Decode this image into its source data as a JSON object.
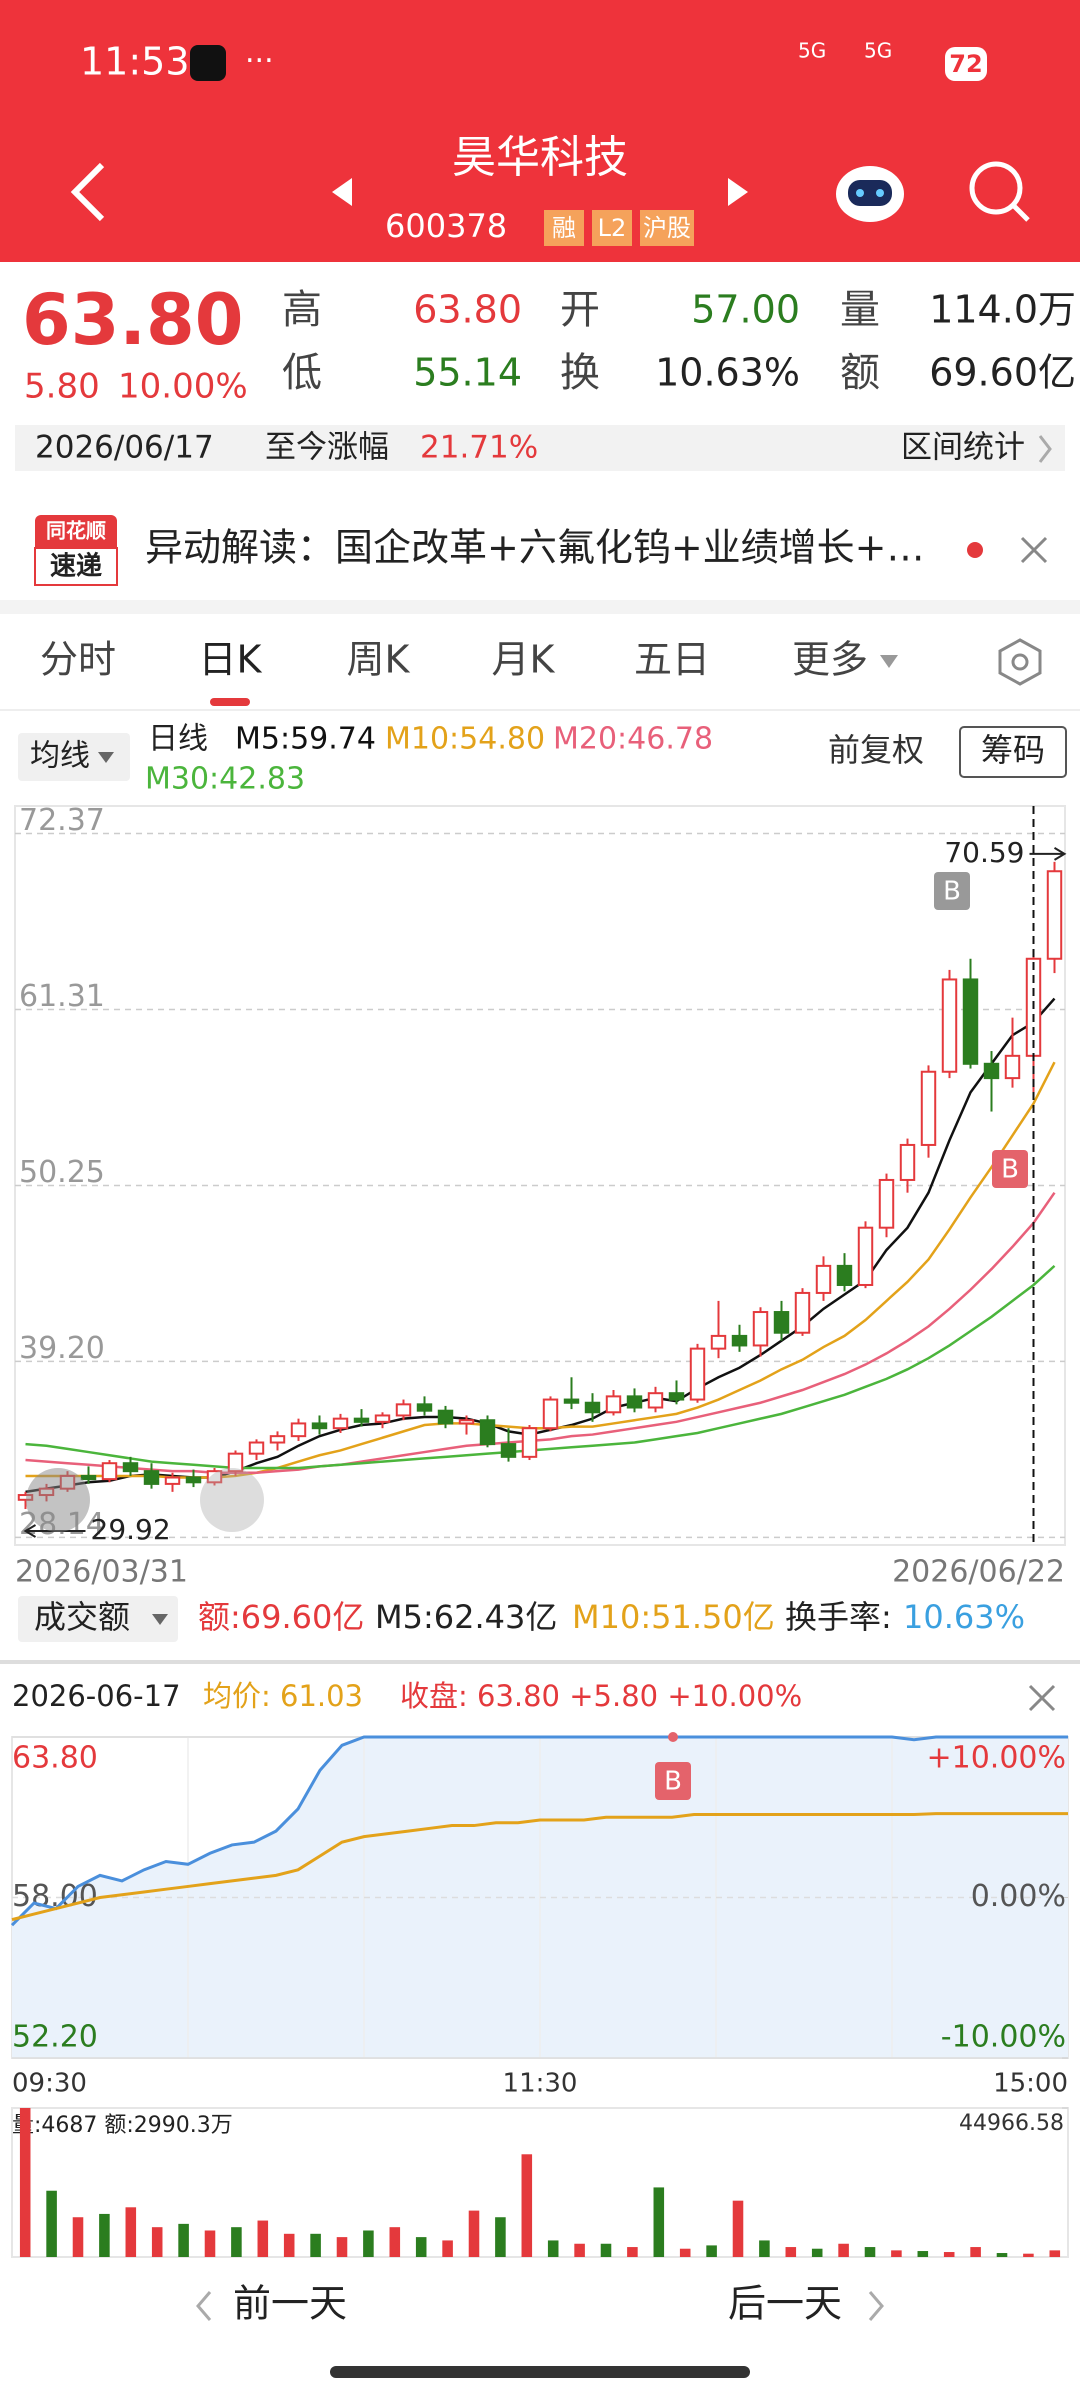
{
  "status_bar": {
    "time": "11:53",
    "signals": [
      "5G",
      "5G"
    ],
    "battery": "72"
  },
  "header": {
    "title": "昊华科技",
    "code": "600378",
    "badges": [
      "融",
      "L2",
      "沪股"
    ]
  },
  "quote": {
    "price": "63.80",
    "change": "5.80",
    "pct": "10.00%",
    "fields": [
      {
        "label": "高",
        "value": "63.80"
      },
      {
        "label": "低",
        "value": "55.14"
      },
      {
        "label": "开",
        "value": "57.00"
      },
      {
        "label": "换",
        "value": "10.63%"
      },
      {
        "label": "量",
        "value": "114.0万"
      },
      {
        "label": "额",
        "value": "69.60亿"
      }
    ]
  },
  "range": {
    "date": "2026/06/17",
    "label": "至今涨幅",
    "value": "21.71%",
    "stats": "区间统计"
  },
  "news": {
    "logo_top": "同花顺",
    "logo_bottom": "速递",
    "text": "异动解读：国企改革+六氟化钨+业绩增长+…"
  },
  "tabs": [
    "分时",
    "日K",
    "周K",
    "月K",
    "五日",
    "更多"
  ],
  "indicators": {
    "ma_menu": "均线",
    "period": "日线",
    "adjust": "前复权",
    "chips": "筹码"
  },
  "turnover_bar": {
    "menu": "成交额",
    "amount": "额:69.60亿",
    "m5": "M5:62.43亿",
    "m10": "M10:51.50亿",
    "rate_label": "换手率:",
    "rate": "10.63%"
  },
  "chart_data": [
    {
      "type": "candlestick",
      "categories": [
        "2026/03/31",
        null,
        null,
        null,
        null,
        null,
        null,
        null,
        null,
        null,
        null,
        null,
        null,
        null,
        null,
        null,
        null,
        null,
        null,
        null,
        null,
        null,
        null,
        null,
        null,
        null,
        null,
        null,
        null,
        null,
        null,
        null,
        null,
        null,
        null,
        null,
        null,
        null,
        null,
        null,
        null,
        null,
        null,
        null,
        null,
        null,
        null,
        null,
        null,
        "2026/06/22"
      ],
      "open": [
        30.5,
        30.8,
        31.2,
        32.0,
        31.8,
        32.8,
        32.3,
        31.5,
        31.9,
        31.6,
        32.3,
        33.4,
        34.1,
        34.5,
        35.3,
        35.0,
        35.6,
        35.4,
        35.8,
        36.5,
        36.1,
        35.3,
        35.5,
        34.0,
        33.2,
        35.0,
        36.8,
        36.6,
        36.0,
        37.0,
        36.3,
        37.2,
        36.8,
        40.0,
        40.8,
        40.2,
        42.3,
        41.0,
        43.5,
        45.2,
        44.0,
        47.6,
        50.6,
        52.8,
        57.4,
        63.2,
        57.9,
        57.0,
        58.4,
        64.5
      ],
      "high": [
        31.0,
        31.5,
        32.3,
        32.6,
        33.0,
        33.2,
        32.8,
        32.2,
        32.4,
        32.5,
        33.6,
        34.3,
        34.8,
        35.6,
        35.8,
        35.9,
        36.2,
        36.0,
        36.8,
        37.0,
        36.4,
        35.8,
        35.8,
        35.0,
        35.2,
        37.0,
        38.2,
        37.2,
        37.4,
        37.5,
        37.6,
        38.0,
        40.3,
        43.0,
        41.5,
        42.6,
        43.0,
        43.8,
        45.8,
        46.0,
        48.0,
        51.0,
        53.2,
        57.8,
        63.8,
        64.5,
        58.7,
        60.8,
        64.9,
        70.59
      ],
      "low": [
        29.92,
        30.4,
        31.0,
        31.5,
        31.6,
        32.0,
        31.2,
        31.0,
        31.3,
        31.4,
        32.0,
        33.0,
        33.6,
        34.2,
        34.6,
        34.7,
        35.1,
        35.0,
        35.5,
        35.8,
        35.0,
        34.6,
        33.8,
        32.9,
        33.0,
        34.8,
        36.2,
        35.4,
        35.8,
        36.0,
        36.0,
        36.5,
        36.6,
        39.4,
        39.8,
        39.5,
        40.5,
        40.8,
        43.0,
        43.6,
        43.8,
        47.0,
        49.8,
        52.0,
        57.0,
        57.6,
        54.9,
        56.4,
        56.0,
        63.6
      ],
      "close": [
        30.8,
        31.2,
        32.0,
        31.8,
        32.8,
        32.3,
        31.5,
        31.9,
        31.6,
        32.3,
        33.4,
        34.1,
        34.5,
        35.3,
        35.0,
        35.6,
        35.4,
        35.8,
        36.5,
        36.1,
        35.3,
        35.5,
        34.0,
        33.2,
        35.0,
        36.8,
        36.6,
        36.0,
        37.0,
        36.3,
        37.2,
        36.8,
        40.0,
        40.8,
        40.2,
        42.3,
        41.0,
        43.5,
        45.2,
        44.0,
        47.6,
        50.6,
        52.8,
        57.4,
        63.2,
        57.9,
        57.0,
        58.4,
        64.5,
        70.0
      ],
      "up_color": "#e4393c",
      "down_color": "#2b7d1f",
      "series": [
        {
          "name": "M5:59.74",
          "color": "#111111",
          "values": [
            31.0,
            31.2,
            31.4,
            31.6,
            31.7,
            32.0,
            32.1,
            32.0,
            31.9,
            31.9,
            32.3,
            32.8,
            33.2,
            33.9,
            34.5,
            34.9,
            35.2,
            35.3,
            35.6,
            35.7,
            35.7,
            35.6,
            35.3,
            34.8,
            34.6,
            34.9,
            35.2,
            35.6,
            36.3,
            36.6,
            36.9,
            36.7,
            37.5,
            38.2,
            38.8,
            39.6,
            40.5,
            41.4,
            42.5,
            43.4,
            44.3,
            46.2,
            47.6,
            49.8,
            53.1,
            56.1,
            57.9,
            59.7,
            60.5,
            62.0
          ]
        },
        {
          "name": "M10:54.80",
          "color": "#e3a21a",
          "values": [
            32.0,
            32.0,
            32.0,
            32.0,
            32.0,
            32.0,
            32.0,
            31.9,
            31.9,
            31.9,
            32.0,
            32.2,
            32.5,
            32.9,
            33.3,
            33.6,
            34.0,
            34.4,
            34.8,
            35.2,
            35.3,
            35.3,
            35.2,
            35.1,
            35.0,
            35.0,
            35.1,
            35.1,
            35.3,
            35.5,
            35.7,
            35.9,
            36.3,
            36.8,
            37.4,
            38.0,
            38.7,
            39.3,
            40.1,
            40.8,
            41.8,
            43.0,
            44.2,
            45.6,
            47.5,
            49.5,
            51.4,
            53.4,
            55.4,
            58.0
          ]
        },
        {
          "name": "M20:46.78",
          "color": "#e8607a",
          "values": [
            33.0,
            32.9,
            32.8,
            32.7,
            32.6,
            32.5,
            32.4,
            32.3,
            32.3,
            32.2,
            32.2,
            32.2,
            32.3,
            32.4,
            32.6,
            32.7,
            32.9,
            33.1,
            33.3,
            33.5,
            33.7,
            33.9,
            34.0,
            34.1,
            34.2,
            34.3,
            34.5,
            34.6,
            34.8,
            35.0,
            35.2,
            35.4,
            35.7,
            36.0,
            36.3,
            36.6,
            37.0,
            37.4,
            37.9,
            38.4,
            39.0,
            39.7,
            40.5,
            41.4,
            42.5,
            43.7,
            45.0,
            46.4,
            47.9,
            49.8
          ]
        },
        {
          "name": "M30:42.83",
          "color": "#4bb53c",
          "values": [
            34.0,
            33.9,
            33.7,
            33.5,
            33.3,
            33.1,
            32.9,
            32.8,
            32.7,
            32.6,
            32.5,
            32.5,
            32.5,
            32.5,
            32.6,
            32.7,
            32.8,
            32.9,
            33.0,
            33.1,
            33.2,
            33.3,
            33.4,
            33.5,
            33.6,
            33.7,
            33.8,
            33.9,
            34.0,
            34.1,
            34.3,
            34.5,
            34.7,
            35.0,
            35.3,
            35.6,
            35.9,
            36.3,
            36.7,
            37.1,
            37.6,
            38.1,
            38.7,
            39.4,
            40.2,
            41.1,
            42.0,
            43.0,
            44.0,
            45.2
          ]
        }
      ],
      "ylim": [
        27.66,
        74.1
      ],
      "yticks": [
        {
          "value": 28.14,
          "label": "28.14"
        },
        {
          "value": 39.2,
          "label": "39.20"
        },
        50.25,
        61.31,
        72.37
      ],
      "annotations": [
        "B",
        "B"
      ]
    },
    {
      "type": "line",
      "title": "2026-06-17",
      "categories": [
        "09:30",
        null,
        null,
        null,
        null,
        null,
        null,
        null,
        null,
        null,
        null,
        null,
        null,
        null,
        null,
        null,
        null,
        null,
        null,
        null,
        null,
        null,
        null,
        null,
        "11:30",
        null,
        null,
        null,
        null,
        null,
        null,
        null,
        null,
        null,
        null,
        null,
        null,
        null,
        null,
        null,
        null,
        null,
        null,
        null,
        null,
        null,
        null,
        null,
        "15:00"
      ],
      "series": [
        {
          "name": "收盘: 63.80 +5.80 +10.00%",
          "color": "#4a8fdc",
          "values": [
            57.0,
            57.8,
            57.6,
            58.4,
            58.8,
            58.6,
            59.0,
            59.3,
            59.2,
            59.6,
            59.9,
            60.0,
            60.4,
            61.2,
            62.6,
            63.5,
            63.8,
            63.8,
            63.8,
            63.8,
            63.8,
            63.8,
            63.8,
            63.8,
            63.8,
            63.8,
            63.8,
            63.8,
            63.8,
            63.8,
            63.8,
            63.8,
            63.8,
            63.8,
            63.8,
            63.8,
            63.8,
            63.8,
            63.8,
            63.8,
            63.8,
            63.7,
            63.8,
            63.8,
            63.8,
            63.8,
            63.8,
            63.8,
            63.8
          ]
        },
        {
          "name": "均价: 61.03",
          "color": "#e3a21a",
          "values": [
            57.2,
            57.4,
            57.6,
            57.8,
            58.0,
            58.1,
            58.2,
            58.3,
            58.4,
            58.5,
            58.6,
            58.7,
            58.8,
            59.0,
            59.5,
            60.0,
            60.2,
            60.3,
            60.4,
            60.5,
            60.6,
            60.6,
            60.7,
            60.7,
            60.8,
            60.8,
            60.8,
            60.9,
            60.9,
            60.9,
            60.9,
            61.0,
            61.0,
            61.0,
            61.0,
            61.0,
            61.0,
            61.0,
            61.0,
            61.0,
            61.0,
            61.0,
            61.03,
            61.03,
            61.03,
            61.03,
            61.03,
            61.03,
            61.03
          ]
        }
      ],
      "ylim": [
        52.2,
        63.8
      ],
      "yticks": [
        {
          "value": 52.2,
          "label": "52.20"
        },
        {
          "value": 58,
          "label": "58.00"
        },
        {
          "value": 63.8,
          "label": "63.80"
        }
      ],
      "y2lim": [
        -10,
        10
      ],
      "y2ticks": [
        {
          "value": -10,
          "label": "-10.00%"
        },
        {
          "value": 0,
          "label": "0.00%"
        },
        {
          "value": 10,
          "label": "+10.00%"
        }
      ],
      "grid": true,
      "annotations": [
        "B"
      ]
    },
    {
      "type": "bar",
      "title": "量:4687 额:2990.3万",
      "series": [
        {
          "color": "#e4393c",
          "values": [
            44966.58,
            null,
            12000,
            null,
            15000,
            9000,
            null,
            8000,
            null,
            11000,
            7000,
            null,
            6000,
            null,
            9000,
            null,
            5000,
            14000,
            null,
            31000,
            null,
            4000,
            null,
            3000,
            null,
            2500,
            null,
            17000,
            null,
            3000,
            null,
            4000,
            null,
            2000,
            null,
            1500,
            3000,
            null,
            1000,
            2000
          ]
        },
        {
          "color": "#2b7d1f",
          "values": [
            null,
            20000,
            null,
            13000,
            null,
            null,
            10000,
            null,
            9000,
            null,
            null,
            7000,
            null,
            8000,
            null,
            6000,
            null,
            null,
            12000,
            null,
            5000,
            null,
            4000,
            null,
            21000,
            null,
            3500,
            null,
            5000,
            null,
            2500,
            null,
            3000,
            null,
            1800,
            null,
            null,
            1200,
            null,
            null
          ]
        }
      ],
      "ylim": [
        0,
        44966.58
      ],
      "yticks": [
        44966.58
      ]
    }
  ],
  "footer": {
    "prev": "前一天",
    "next": "后一天"
  }
}
